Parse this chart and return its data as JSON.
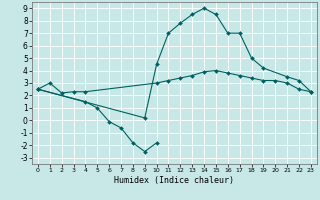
{
  "xlabel": "Humidex (Indice chaleur)",
  "background_color": "#c8e8e8",
  "grid_color": "#ffffff",
  "line_color": "#006060",
  "xlim": [
    -0.5,
    23.5
  ],
  "ylim": [
    -3.5,
    9.5
  ],
  "xticks": [
    0,
    1,
    2,
    3,
    4,
    5,
    6,
    7,
    8,
    9,
    10,
    11,
    12,
    13,
    14,
    15,
    16,
    17,
    18,
    19,
    20,
    21,
    22,
    23
  ],
  "yticks": [
    -3,
    -2,
    -1,
    0,
    1,
    2,
    3,
    4,
    5,
    6,
    7,
    8,
    9
  ],
  "series": [
    {
      "x": [
        0,
        1,
        2,
        3,
        4,
        10,
        11,
        12,
        13,
        14,
        15,
        16,
        17,
        18,
        19,
        20,
        21,
        22,
        23
      ],
      "y": [
        2.5,
        3.0,
        2.2,
        2.3,
        2.3,
        3.0,
        3.2,
        3.4,
        3.6,
        3.9,
        4.0,
        3.8,
        3.6,
        3.4,
        3.2,
        3.2,
        3.0,
        2.5,
        2.3
      ]
    },
    {
      "x": [
        0,
        4,
        5,
        6,
        7,
        8,
        9,
        10
      ],
      "y": [
        2.5,
        1.5,
        1.0,
        -0.1,
        -0.6,
        -1.8,
        -2.5,
        -1.8
      ]
    },
    {
      "x": [
        0,
        9,
        10,
        11,
        12,
        13,
        14,
        15,
        16,
        17,
        18,
        19,
        21,
        22,
        23
      ],
      "y": [
        2.5,
        0.2,
        4.5,
        7.0,
        7.8,
        8.5,
        9.0,
        8.5,
        7.0,
        7.0,
        5.0,
        4.2,
        3.5,
        3.2,
        2.3
      ]
    }
  ]
}
